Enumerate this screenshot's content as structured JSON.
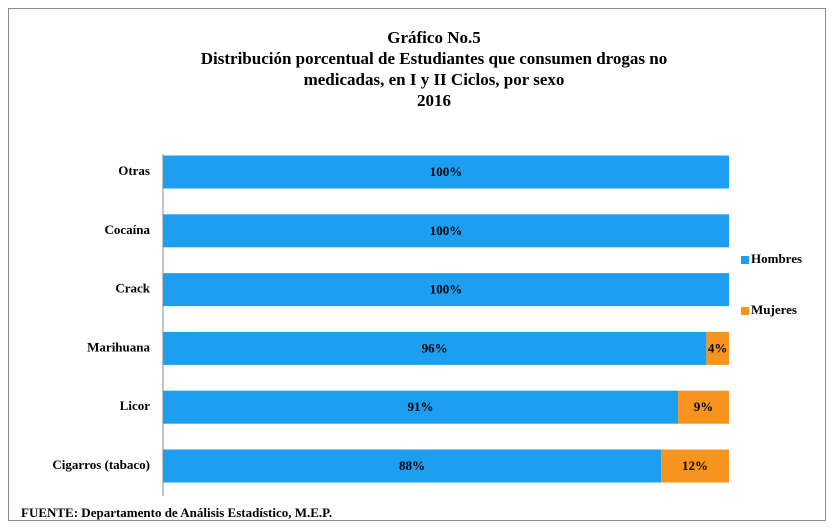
{
  "chart_data": {
    "type": "stacked-bar-horizontal",
    "title": [
      "Gráfico No.5",
      "Distribución porcentual de Estudiantes que consumen drogas no",
      "medicadas, en I y II Ciclos, por sexo",
      "2016"
    ],
    "categories": [
      "Otras",
      "Cocaína",
      "Crack",
      "Marihuana",
      "Licor",
      "Cigarros (tabaco)"
    ],
    "series": [
      {
        "name": "Hombres",
        "color": "#1e9ef0",
        "values": [
          100,
          100,
          100,
          96,
          91,
          88
        ],
        "value_labels": [
          "100%",
          "100%",
          "100%",
          "96%",
          "91%",
          "88%"
        ]
      },
      {
        "name": "Mujeres",
        "color": "#f7941d",
        "values": [
          0,
          0,
          0,
          4,
          9,
          12
        ],
        "value_labels": [
          null,
          null,
          null,
          "4%",
          "9%",
          "12%"
        ]
      }
    ],
    "xlim": [
      0,
      100
    ],
    "legend": "right",
    "source": "FUENTE: Departamento de Análisis Estadístico, M.E.P."
  }
}
